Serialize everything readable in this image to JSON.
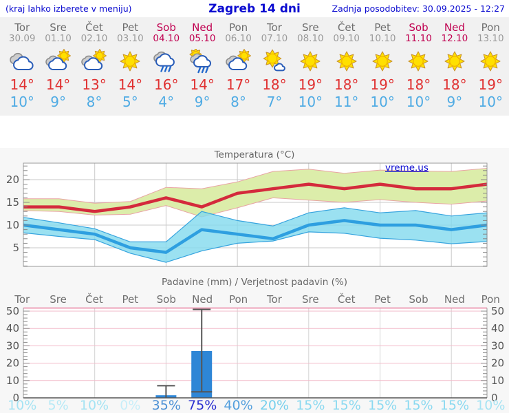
{
  "header": {
    "left_note": "(kraj lahko izberete v meniju)",
    "title": "Zagreb 14 dni",
    "updated": "Zadnja posodobitev: 30.09.2025 - 12:27"
  },
  "watermark": "vreme.us",
  "colors": {
    "header_text": "#0b0bd0",
    "weekday_text": "#6e6e6e",
    "date_text": "#9a9a9a",
    "weekend_text": "#c00050",
    "tmax_text": "#e03131",
    "tmin_text": "#4fabe4",
    "max_line": "#d42a3c",
    "max_band": "#dcedaa",
    "min_line": "#2e9fe0",
    "min_band": "#a5e2f0",
    "bar_fill": "#2e86d6",
    "precip_grid_pink": "#f2bac9",
    "strip_bg": "#f1f1f1",
    "chart_bg": "#f7f7f7"
  },
  "days": [
    {
      "name": "Tor",
      "date": "30.09",
      "weekend": false,
      "icon": "cloudy",
      "tmax": "14°",
      "tmin": "10°",
      "precip_prob": "10%",
      "prob_color": "#a5e3f3"
    },
    {
      "name": "Sre",
      "date": "01.10",
      "weekend": false,
      "icon": "partly-cloudy",
      "tmax": "14°",
      "tmin": "9°",
      "precip_prob": "5%",
      "prob_color": "#b6e9f6"
    },
    {
      "name": "Čet",
      "date": "02.10",
      "weekend": false,
      "icon": "partly-cloudy",
      "tmax": "13°",
      "tmin": "8°",
      "precip_prob": "10%",
      "prob_color": "#a5e3f3"
    },
    {
      "name": "Pet",
      "date": "03.10",
      "weekend": false,
      "icon": "sunny",
      "tmax": "14°",
      "tmin": "5°",
      "precip_prob": "0%",
      "prob_color": "#c7eef9"
    },
    {
      "name": "Sob",
      "date": "04.10",
      "weekend": true,
      "icon": "rain",
      "tmax": "16°",
      "tmin": "4°",
      "precip_prob": "35%",
      "prob_color": "#4a8fd4"
    },
    {
      "name": "Ned",
      "date": "05.10",
      "weekend": true,
      "icon": "sun-rain",
      "tmax": "14°",
      "tmin": "9°",
      "precip_prob": "75%",
      "prob_color": "#2a2fd0"
    },
    {
      "name": "Pon",
      "date": "06.10",
      "weekend": false,
      "icon": "partly-cloudy",
      "tmax": "17°",
      "tmin": "8°",
      "precip_prob": "40%",
      "prob_color": "#539fdd"
    },
    {
      "name": "Tor",
      "date": "07.10",
      "weekend": false,
      "icon": "mostly-sunny",
      "tmax": "18°",
      "tmin": "7°",
      "precip_prob": "20%",
      "prob_color": "#76cfec"
    },
    {
      "name": "Sre",
      "date": "08.10",
      "weekend": false,
      "icon": "sunny",
      "tmax": "19°",
      "tmin": "10°",
      "precip_prob": "15%",
      "prob_color": "#8bd9f0"
    },
    {
      "name": "Čet",
      "date": "09.10",
      "weekend": false,
      "icon": "sunny",
      "tmax": "18°",
      "tmin": "11°",
      "precip_prob": "15%",
      "prob_color": "#8bd9f0"
    },
    {
      "name": "Pet",
      "date": "10.10",
      "weekend": false,
      "icon": "sunny",
      "tmax": "19°",
      "tmin": "10°",
      "precip_prob": "15%",
      "prob_color": "#8bd9f0"
    },
    {
      "name": "Sob",
      "date": "11.10",
      "weekend": true,
      "icon": "sunny",
      "tmax": "18°",
      "tmin": "10°",
      "precip_prob": "15%",
      "prob_color": "#8bd9f0"
    },
    {
      "name": "Ned",
      "date": "12.10",
      "weekend": true,
      "icon": "sunny",
      "tmax": "18°",
      "tmin": "9°",
      "precip_prob": "15%",
      "prob_color": "#8bd9f0"
    },
    {
      "name": "Pon",
      "date": "13.10",
      "weekend": false,
      "icon": "sunny",
      "tmax": "19°",
      "tmin": "10°",
      "precip_prob": "10%",
      "prob_color": "#a5e3f3"
    }
  ],
  "chart_data": [
    {
      "type": "line",
      "title": "Temperatura (°C)",
      "categories": [
        "Tor 30.09",
        "Sre 01.10",
        "Čet 02.10",
        "Pet 03.10",
        "Sob 04.10",
        "Ned 05.10",
        "Pon 06.10",
        "Tor 07.10",
        "Sre 08.10",
        "Čet 09.10",
        "Pet 10.10",
        "Sob 11.10",
        "Ned 12.10",
        "Pon 13.10"
      ],
      "ylim": [
        0,
        24
      ],
      "yticks": [
        5,
        10,
        15,
        20
      ],
      "grid": true,
      "legend": "none",
      "series": [
        {
          "name": "max temperatura",
          "color": "#d42a3c",
          "band_color": "#dcedaa",
          "band_edge_color": "#e8a4a4",
          "values": [
            14,
            14,
            13,
            14,
            16,
            14,
            17,
            18,
            19,
            18,
            19,
            18,
            18,
            19
          ],
          "band_upper": [
            15.8,
            15.8,
            14.8,
            15.2,
            18.3,
            18.0,
            19.5,
            21.8,
            22.3,
            21.4,
            22.1,
            21.9,
            21.8,
            22.5
          ],
          "band_lower": [
            13.2,
            13.0,
            12.2,
            12.4,
            14.3,
            11.8,
            13.8,
            16.0,
            15.5,
            15.0,
            15.6,
            15.0,
            14.6,
            15.3
          ]
        },
        {
          "name": "min temperatura",
          "color": "#2e9fe0",
          "band_color": "#82d9ee",
          "band_edge_color": "#35a3de",
          "values": [
            10,
            9,
            8,
            5,
            4,
            9,
            8,
            7,
            10,
            11,
            10,
            10,
            9,
            10
          ],
          "band_upper": [
            11.7,
            10.5,
            9.2,
            6.3,
            6.3,
            13.0,
            11.0,
            9.8,
            12.7,
            13.8,
            12.7,
            13.2,
            12.0,
            12.7
          ],
          "band_lower": [
            8.3,
            7.5,
            6.8,
            3.8,
            1.8,
            4.3,
            6.0,
            6.5,
            8.5,
            8.2,
            7.1,
            6.7,
            5.9,
            6.4
          ]
        }
      ]
    },
    {
      "type": "bar",
      "title": "Padavine (mm) / Verjetnost padavin (%)",
      "categories": [
        "Tor",
        "Sre",
        "Čet",
        "Pet",
        "Sob",
        "Ned",
        "Pon",
        "Tor",
        "Sre",
        "Čet",
        "Pet",
        "Sob",
        "Ned",
        "Pon"
      ],
      "values": [
        0,
        0,
        0,
        0,
        1.5,
        27,
        0,
        0,
        0,
        0,
        0,
        0,
        0,
        0
      ],
      "whisker_low": [
        null,
        null,
        null,
        null,
        0,
        3.5,
        null,
        null,
        null,
        null,
        null,
        null,
        null,
        null
      ],
      "whisker_high": [
        null,
        null,
        null,
        null,
        7,
        51,
        null,
        null,
        null,
        null,
        null,
        null,
        null,
        null
      ],
      "probabilities": [
        10,
        5,
        10,
        0,
        35,
        75,
        40,
        20,
        15,
        15,
        15,
        15,
        15,
        10
      ],
      "ylim": [
        0,
        52
      ],
      "yticks": [
        0,
        10,
        20,
        30,
        40,
        50
      ],
      "grid": true
    }
  ]
}
